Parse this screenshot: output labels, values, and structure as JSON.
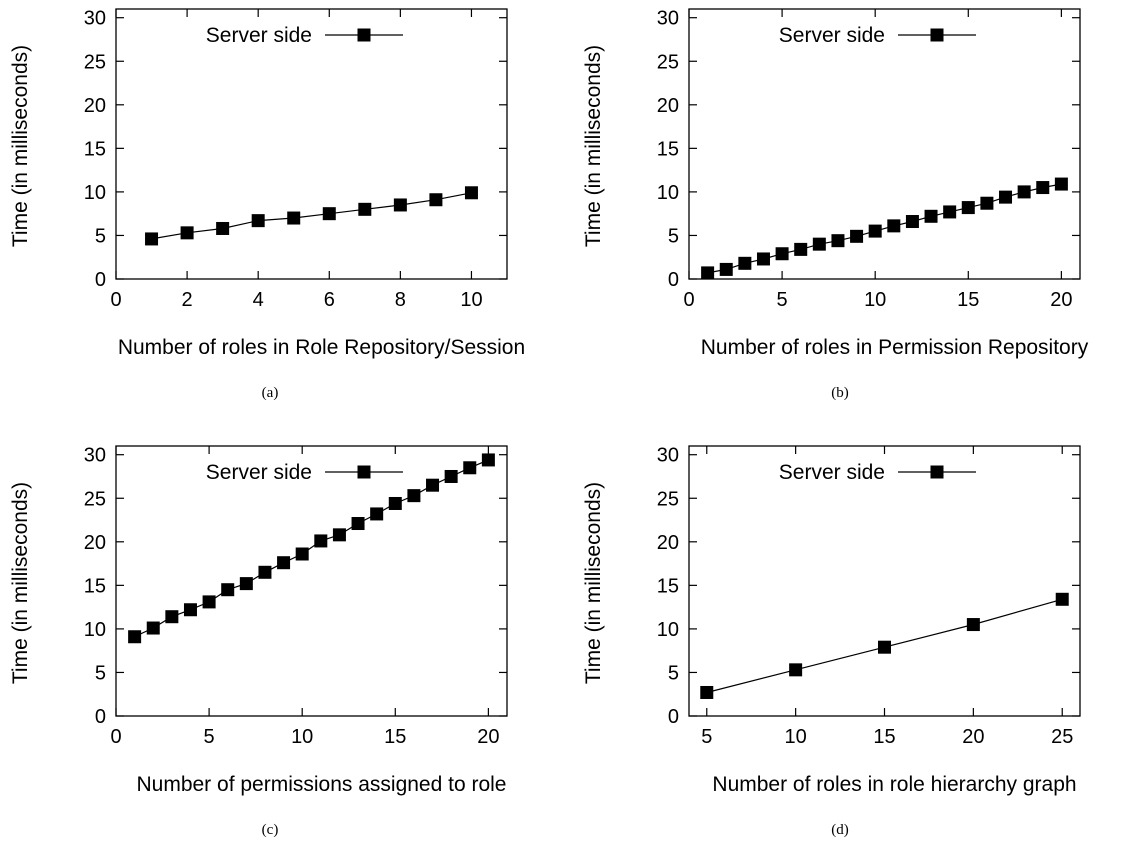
{
  "chart_data": [
    {
      "type": "line",
      "caption": "(a)",
      "xlabel": "Number of roles in Role Repository/Session",
      "ylabel": "Time (in milliseconds)",
      "xlim": [
        0,
        11
      ],
      "ylim": [
        0,
        31
      ],
      "xticks": [
        0,
        2,
        4,
        6,
        8,
        10
      ],
      "yticks": [
        0,
        5,
        10,
        15,
        20,
        25,
        30
      ],
      "legend": "top-left",
      "series": [
        {
          "name": "Server side",
          "marker": "square",
          "x": [
            1,
            2,
            3,
            4,
            5,
            6,
            7,
            8,
            9,
            10
          ],
          "y": [
            4.6,
            5.3,
            5.8,
            6.7,
            7.0,
            7.5,
            8.0,
            8.5,
            9.1,
            9.9
          ]
        }
      ]
    },
    {
      "type": "line",
      "caption": "(b)",
      "xlabel": "Number of roles in Permission Repository",
      "ylabel": "Time (in milliseconds)",
      "xlim": [
        0,
        21
      ],
      "ylim": [
        0,
        31
      ],
      "xticks": [
        0,
        5,
        10,
        15,
        20
      ],
      "yticks": [
        0,
        5,
        10,
        15,
        20,
        25,
        30
      ],
      "legend": "top-left",
      "series": [
        {
          "name": "Server side",
          "marker": "square",
          "x": [
            1,
            2,
            3,
            4,
            5,
            6,
            7,
            8,
            9,
            10,
            11,
            12,
            13,
            14,
            15,
            16,
            17,
            18,
            19,
            20
          ],
          "y": [
            0.7,
            1.1,
            1.8,
            2.3,
            2.9,
            3.4,
            4.0,
            4.4,
            4.9,
            5.5,
            6.1,
            6.6,
            7.2,
            7.7,
            8.2,
            8.7,
            9.4,
            10.0,
            10.5,
            10.9
          ]
        }
      ]
    },
    {
      "type": "line",
      "caption": "(c)",
      "xlabel": "Number of permissions assigned to role",
      "ylabel": "Time (in milliseconds)",
      "xlim": [
        0,
        21
      ],
      "ylim": [
        0,
        31
      ],
      "xticks": [
        0,
        5,
        10,
        15,
        20
      ],
      "yticks": [
        0,
        5,
        10,
        15,
        20,
        25,
        30
      ],
      "legend": "top-left",
      "series": [
        {
          "name": "Server side",
          "marker": "square",
          "x": [
            1,
            2,
            3,
            4,
            5,
            6,
            7,
            8,
            9,
            10,
            11,
            12,
            13,
            14,
            15,
            16,
            17,
            18,
            19,
            20
          ],
          "y": [
            9.1,
            10.1,
            11.4,
            12.2,
            13.1,
            14.5,
            15.2,
            16.5,
            17.6,
            18.6,
            20.1,
            20.8,
            22.1,
            23.2,
            24.4,
            25.3,
            26.5,
            27.5,
            28.5,
            29.4
          ]
        }
      ]
    },
    {
      "type": "line",
      "caption": "(d)",
      "xlabel": "Number of roles in role hierarchy graph",
      "ylabel": "Time (in milliseconds)",
      "xlim": [
        4,
        26
      ],
      "ylim": [
        0,
        31
      ],
      "xticks": [
        5,
        10,
        15,
        20,
        25
      ],
      "yticks": [
        0,
        5,
        10,
        15,
        20,
        25,
        30
      ],
      "legend": "top-left",
      "series": [
        {
          "name": "Server side",
          "marker": "square",
          "x": [
            5,
            10,
            15,
            20,
            25
          ],
          "y": [
            2.7,
            5.3,
            7.9,
            10.5,
            13.4
          ]
        }
      ]
    }
  ]
}
